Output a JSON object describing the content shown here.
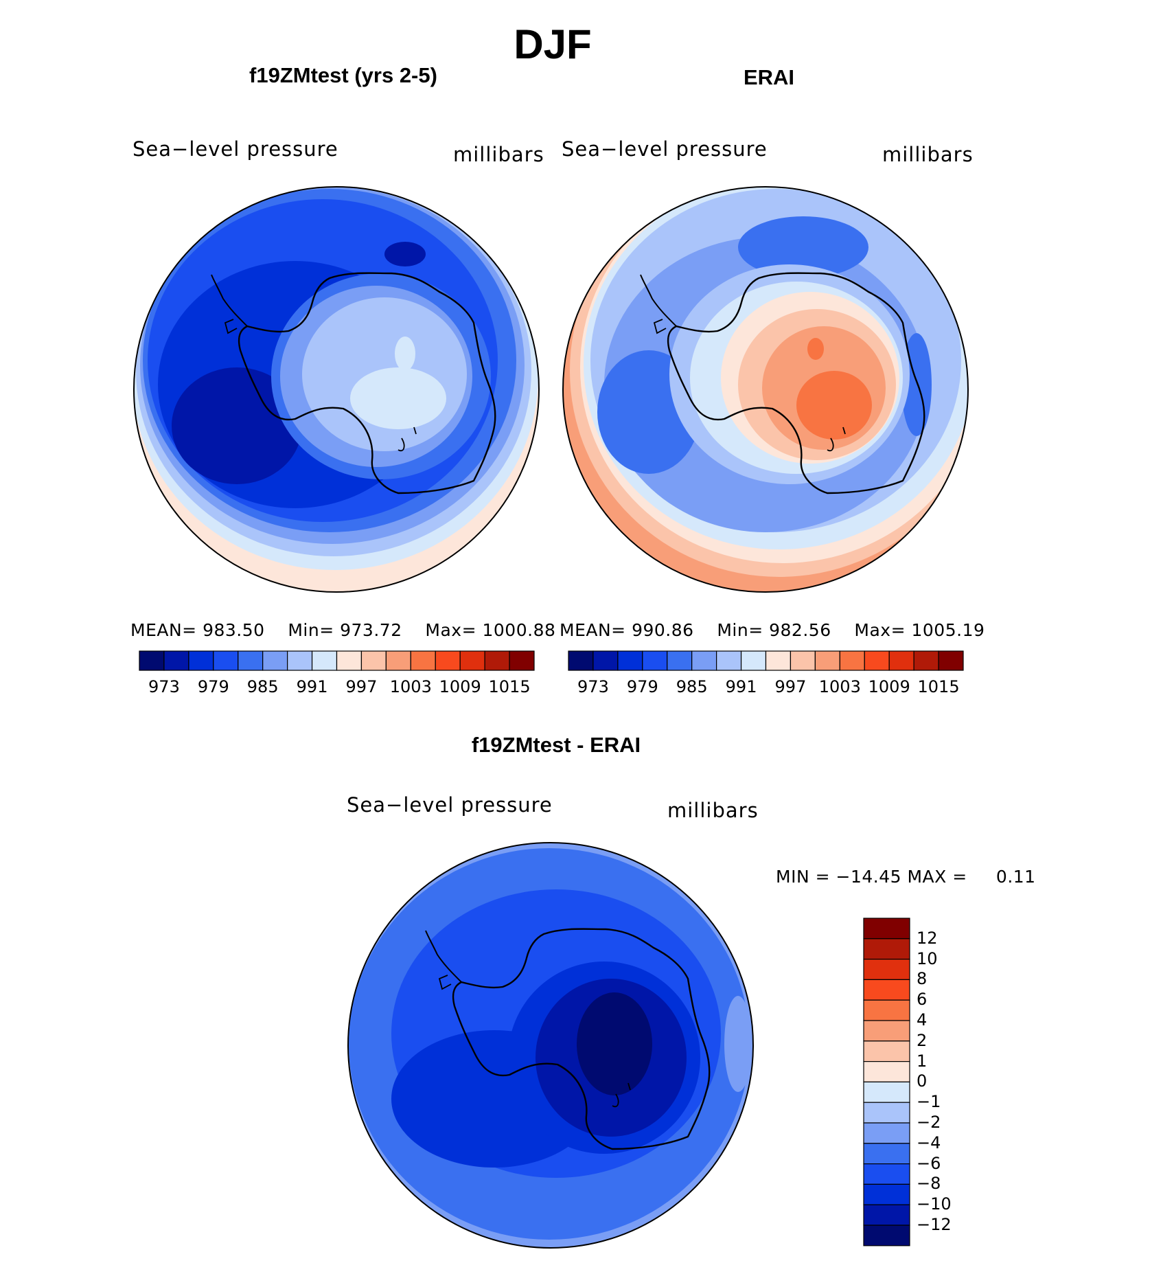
{
  "figure": {
    "title": "DJF"
  },
  "panels": [
    {
      "title": "f19ZMtest (yrs 2-5)",
      "variable": "Sea−level pressure",
      "units": "millibars",
      "stats": {
        "mean_label": "MEAN=",
        "mean": "983.50",
        "min_label": "Min=",
        "min": "973.72",
        "max_label": "Max=",
        "max": "1000.88"
      },
      "field_character": "mostly blue (low), Antarctic interior lightest"
    },
    {
      "title": "ERAI",
      "variable": "Sea−level pressure",
      "units": "millibars",
      "stats": {
        "mean_label": "MEAN=",
        "mean": "990.86",
        "min_label": "Min=",
        "min": "982.56",
        "max_label": "Max=",
        "max": "1005.19"
      },
      "field_character": "blue ring, orange high over Antarctic plateau"
    },
    {
      "title": "f19ZMtest - ERAI",
      "variable": "Sea−level pressure",
      "units": "millibars",
      "stats_text": {
        "min_label": "MIN =",
        "min": "−14.45",
        "max_label": "MAX =",
        "max": "0.11"
      },
      "field_character": "negative everywhere, strongest over East Antarctica"
    }
  ],
  "colorbar_abs": {
    "colors": [
      "#000a70",
      "#0016a8",
      "#0030d8",
      "#1a4ef0",
      "#3a70f0",
      "#7a9ef5",
      "#aac4fa",
      "#d5e8fb",
      "#fde6da",
      "#fbc4aa",
      "#f89e78",
      "#f87442",
      "#f84a1e",
      "#e0300e",
      "#b01a08",
      "#800000"
    ],
    "ticks": [
      "973",
      "979",
      "985",
      "991",
      "997",
      "1003",
      "1009",
      "1015"
    ]
  },
  "colorbar_diff": {
    "colors_top_to_bottom": [
      "#800000",
      "#b01a08",
      "#e0300e",
      "#f84a1e",
      "#f87442",
      "#f89e78",
      "#fbc4aa",
      "#fde6da",
      "#d5e8fb",
      "#aac4fa",
      "#7a9ef5",
      "#3a70f0",
      "#1a4ef0",
      "#0030d8",
      "#0016a8",
      "#000a70"
    ],
    "ticks": [
      "12",
      "10",
      "8",
      "6",
      "4",
      "2",
      "1",
      "0",
      "−1",
      "−2",
      "−4",
      "−6",
      "−8",
      "−10",
      "−12"
    ]
  },
  "map": {
    "projection": "south polar stereographic",
    "region": "Antarctica",
    "coastline_color": "#000000"
  }
}
